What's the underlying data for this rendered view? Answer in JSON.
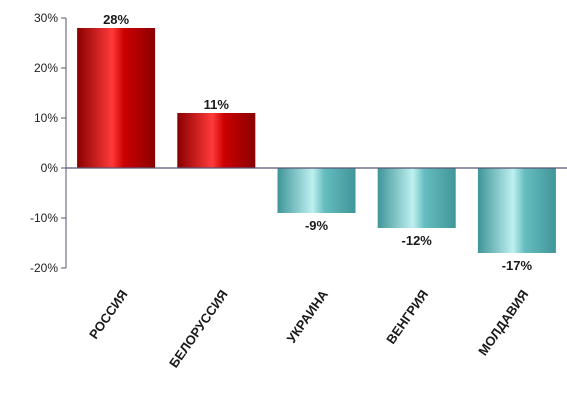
{
  "chart_data": {
    "type": "bar",
    "title": "",
    "xlabel": "",
    "ylabel": "",
    "categories": [
      "РОССИЯ",
      "БЕЛОРУССИЯ",
      "УКРАИНА",
      "ВЕНГРИЯ",
      "МОЛДАВИЯ"
    ],
    "values": [
      28,
      11,
      -9,
      -12,
      -17
    ],
    "value_labels": [
      "28%",
      "11%",
      "-9%",
      "-12%",
      "-17%"
    ],
    "ylim": [
      -20,
      30
    ],
    "yticks": [
      30,
      20,
      10,
      0,
      -10,
      -20
    ],
    "ytick_labels": [
      "30%",
      "20%",
      "10%",
      "0%",
      "-10%",
      "-20%"
    ],
    "grid": false,
    "legend": "none",
    "colors": {
      "positive": "#cc0000",
      "positive_highlight": "#ff3a3a",
      "positive_shadow": "#8a0000",
      "negative": "#66bdbf",
      "negative_highlight": "#bff0f0",
      "negative_shadow": "#3f9598",
      "axis": "#555577"
    }
  }
}
